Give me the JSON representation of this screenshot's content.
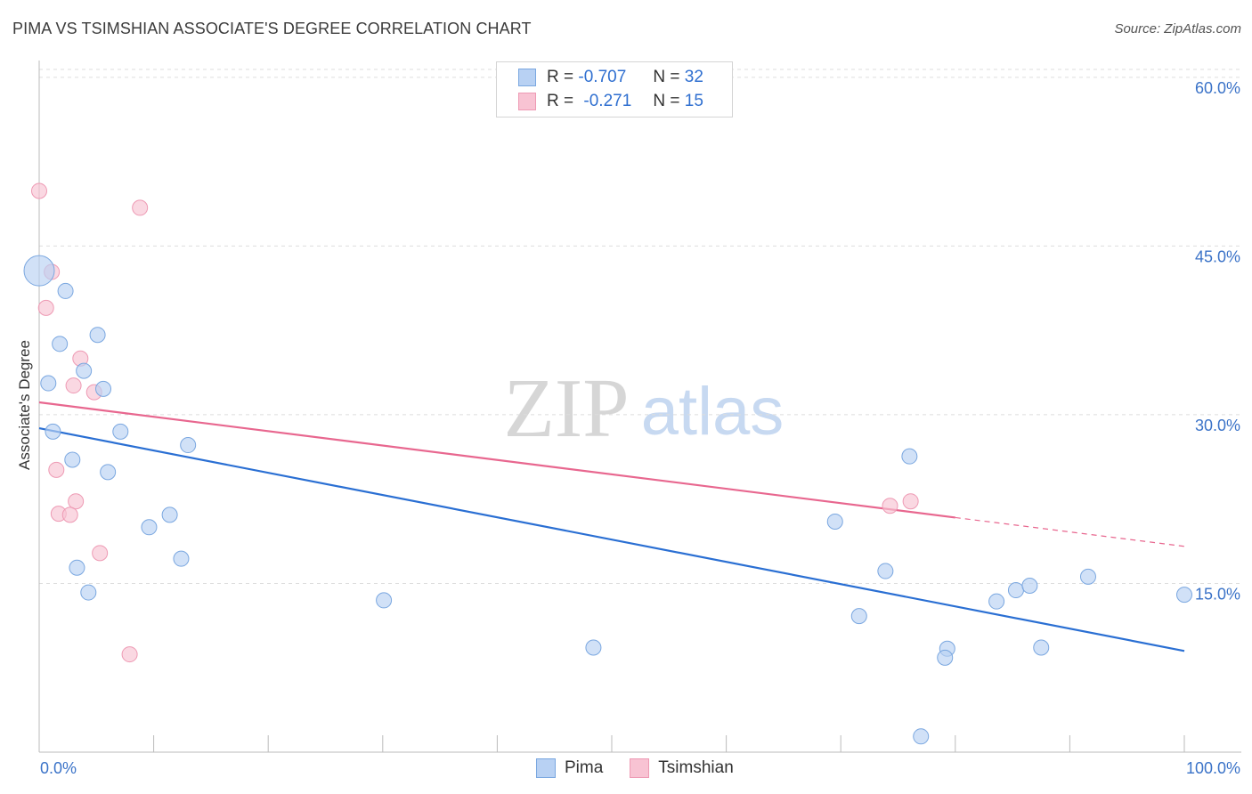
{
  "title": "PIMA VS TSIMSHIAN ASSOCIATE'S DEGREE CORRELATION CHART",
  "source": "Source: ZipAtlas.com",
  "watermark": {
    "zip": "ZIP",
    "atlas": "atlas"
  },
  "colors": {
    "pima_fill": "#b8d1f3",
    "pima_stroke": "#7aa7e0",
    "pima_line": "#2a6fd3",
    "tsim_fill": "#f8c3d3",
    "tsim_stroke": "#ee9ab4",
    "tsim_line": "#e8678f",
    "axis_text": "#3b73c8",
    "grid": "#dddddd"
  },
  "legend": {
    "rows": [
      {
        "r_label": "R =",
        "r_value": "-0.707",
        "n_label": "N =",
        "n_value": "32"
      },
      {
        "r_label": "R =",
        "r_value": "-0.271",
        "n_label": "N =",
        "n_value": "15"
      }
    ],
    "series": [
      "Pima",
      "Tsimshian"
    ]
  },
  "chart_data": {
    "type": "scatter",
    "title": "PIMA VS TSIMSHIAN ASSOCIATE'S DEGREE CORRELATION CHART",
    "xlabel": "",
    "ylabel": "Associate's Degree",
    "xlim": [
      0,
      100
    ],
    "ylim": [
      0,
      60.7
    ],
    "x_tick_labels": [
      "0.0%",
      "100.0%"
    ],
    "y_ticks": [
      15,
      30,
      45,
      60
    ],
    "y_tick_labels": [
      "15.0%",
      "30.0%",
      "45.0%",
      "60.0%"
    ],
    "grid": true,
    "series": [
      {
        "name": "Pima",
        "r": -0.707,
        "n": 32,
        "trend": {
          "x": [
            0,
            100
          ],
          "y": [
            28.8,
            9.0
          ],
          "dashed_from": null
        },
        "points": [
          {
            "x": 0.0,
            "y": 42.8,
            "size": "large"
          },
          {
            "x": 2.3,
            "y": 41.0
          },
          {
            "x": 5.1,
            "y": 37.1
          },
          {
            "x": 1.8,
            "y": 36.3
          },
          {
            "x": 3.9,
            "y": 33.9
          },
          {
            "x": 0.8,
            "y": 32.8
          },
          {
            "x": 5.6,
            "y": 32.3
          },
          {
            "x": 1.2,
            "y": 28.5
          },
          {
            "x": 7.1,
            "y": 28.5
          },
          {
            "x": 13.0,
            "y": 27.3
          },
          {
            "x": 2.9,
            "y": 26.0
          },
          {
            "x": 6.0,
            "y": 24.9
          },
          {
            "x": 11.4,
            "y": 21.1
          },
          {
            "x": 9.6,
            "y": 20.0
          },
          {
            "x": 12.4,
            "y": 17.2
          },
          {
            "x": 3.3,
            "y": 16.4
          },
          {
            "x": 4.3,
            "y": 14.2
          },
          {
            "x": 30.1,
            "y": 13.5
          },
          {
            "x": 48.4,
            "y": 9.3
          },
          {
            "x": 76.0,
            "y": 26.3
          },
          {
            "x": 69.5,
            "y": 20.5
          },
          {
            "x": 73.9,
            "y": 16.1
          },
          {
            "x": 71.6,
            "y": 12.1
          },
          {
            "x": 79.3,
            "y": 9.2
          },
          {
            "x": 79.1,
            "y": 8.4
          },
          {
            "x": 77.0,
            "y": 1.4
          },
          {
            "x": 83.6,
            "y": 13.4
          },
          {
            "x": 85.3,
            "y": 14.4
          },
          {
            "x": 86.5,
            "y": 14.8
          },
          {
            "x": 87.5,
            "y": 9.3
          },
          {
            "x": 91.6,
            "y": 15.6
          },
          {
            "x": 100.0,
            "y": 14.0
          }
        ]
      },
      {
        "name": "Tsimshian",
        "r": -0.271,
        "n": 15,
        "trend": {
          "x": [
            0,
            100
          ],
          "y": [
            31.1,
            18.3
          ],
          "dashed_from": 80
        },
        "points": [
          {
            "x": 0.0,
            "y": 49.9
          },
          {
            "x": 8.8,
            "y": 48.4
          },
          {
            "x": 1.1,
            "y": 42.7
          },
          {
            "x": 0.6,
            "y": 39.5
          },
          {
            "x": 3.6,
            "y": 35.0
          },
          {
            "x": 3.0,
            "y": 32.6
          },
          {
            "x": 4.8,
            "y": 32.0
          },
          {
            "x": 1.5,
            "y": 25.1
          },
          {
            "x": 3.2,
            "y": 22.3
          },
          {
            "x": 1.7,
            "y": 21.2
          },
          {
            "x": 2.7,
            "y": 21.1
          },
          {
            "x": 5.3,
            "y": 17.7
          },
          {
            "x": 7.9,
            "y": 8.7
          },
          {
            "x": 74.3,
            "y": 21.9
          },
          {
            "x": 76.1,
            "y": 22.3
          }
        ]
      }
    ]
  }
}
